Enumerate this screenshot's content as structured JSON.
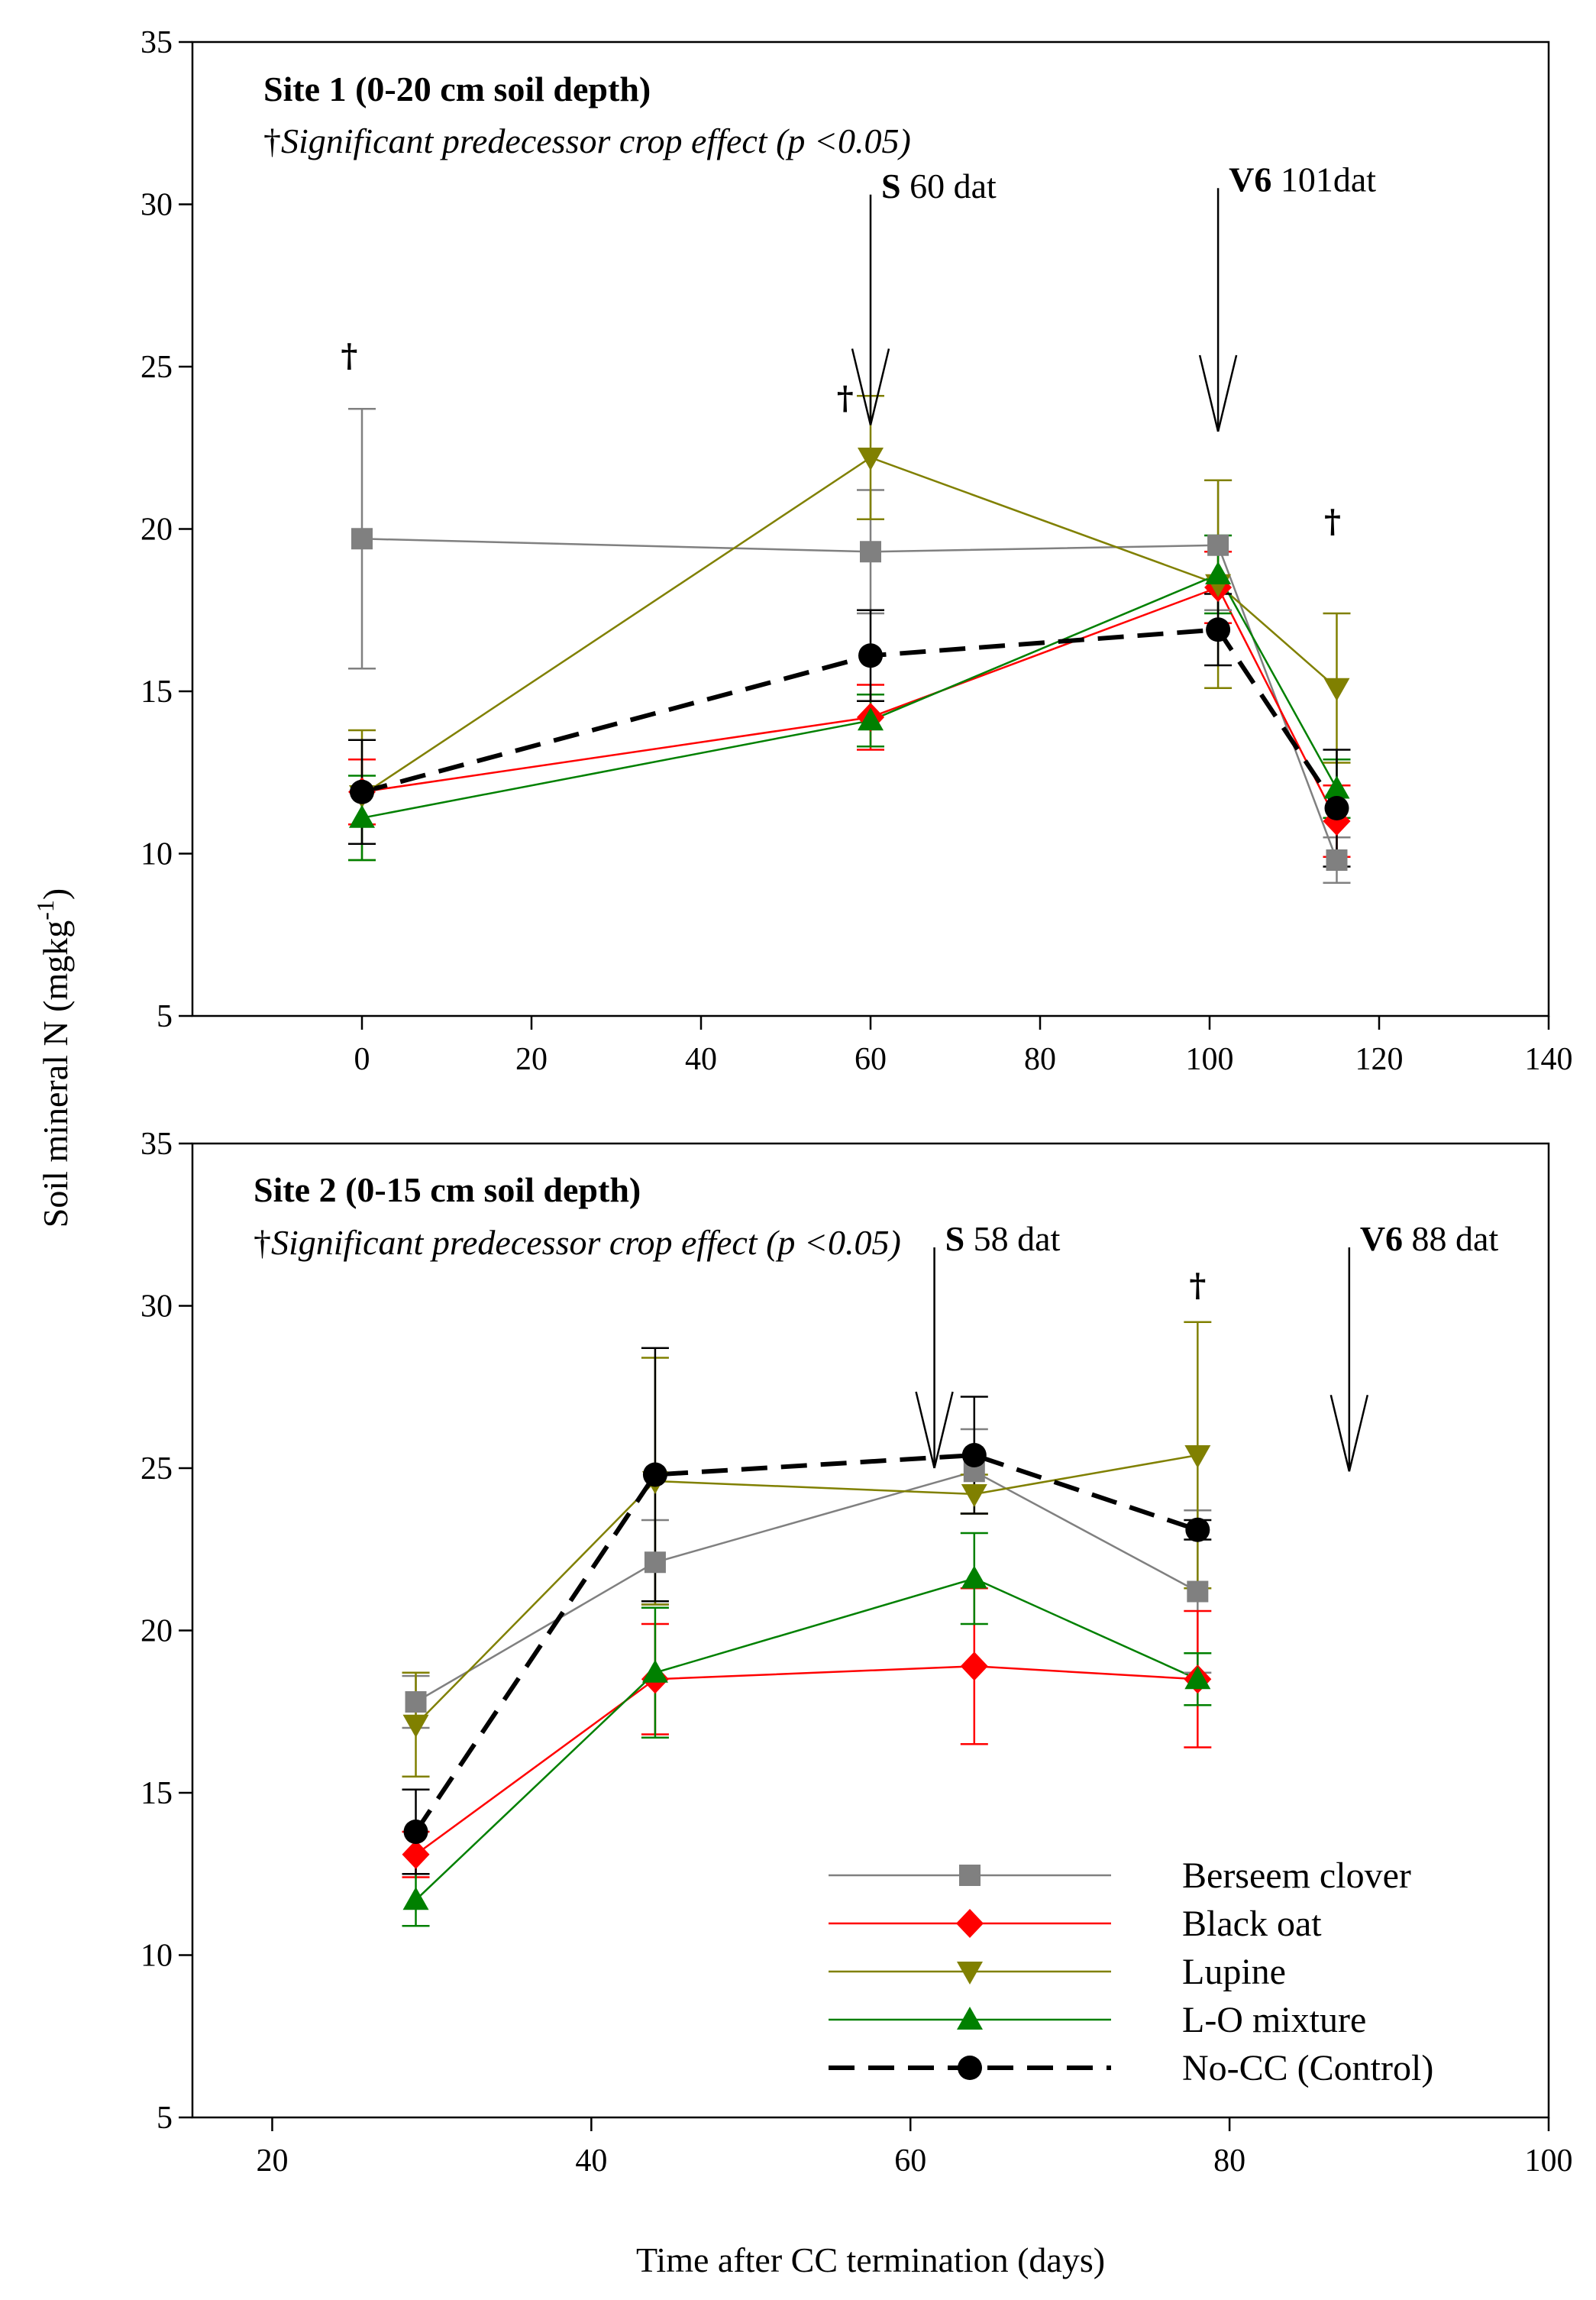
{
  "colors": {
    "berseem": "#808080",
    "blackoat": "#ff0000",
    "lupine": "#808000",
    "lomix": "#008000",
    "control": "#000000"
  },
  "labels": {
    "ylabel_main": "Soil mineral N (mgkg",
    "ylabel_sup": "-1",
    "ylabel_end": ")",
    "xlabel": "Time after CC termination (days)",
    "note_prefix": "†",
    "note_text": "Significant predecessor crop effect (p <0.05)"
  },
  "legend": [
    {
      "key": "berseem",
      "label": "Berseem clover"
    },
    {
      "key": "blackoat",
      "label": "Black oat"
    },
    {
      "key": "lupine",
      "label": "Lupine"
    },
    {
      "key": "lomix",
      "label": "L-O mixture"
    },
    {
      "key": "control",
      "label": "No-CC (Control)"
    }
  ],
  "chart_data": [
    {
      "type": "line",
      "title": "Site 1 (0-20 cm soil depth)",
      "note": "†Significant predecessor crop effect (p <0.05)",
      "xlabel": "Time after CC termination (days)",
      "ylabel": "Soil mineral N (mgkg-1)",
      "xlim": [
        -20,
        140
      ],
      "ylim": [
        5,
        35
      ],
      "xticks": [
        0,
        20,
        40,
        60,
        80,
        100,
        120,
        140
      ],
      "yticks": [
        5,
        10,
        15,
        20,
        25,
        30,
        35
      ],
      "series": [
        {
          "key": "berseem",
          "name": "Berseem clover",
          "x": [
            0,
            60,
            101,
            115
          ],
          "y": [
            19.7,
            19.3,
            19.5,
            9.8
          ],
          "err": [
            4.0,
            1.9,
            2.0,
            0.7
          ]
        },
        {
          "key": "blackoat",
          "name": "Black oat",
          "x": [
            0,
            60,
            101,
            115
          ],
          "y": [
            11.9,
            14.2,
            18.2,
            11.0
          ],
          "err": [
            1.0,
            1.0,
            1.1,
            1.1
          ]
        },
        {
          "key": "lupine",
          "name": "Lupine",
          "x": [
            0,
            60,
            101,
            115
          ],
          "y": [
            11.8,
            22.2,
            18.3,
            15.1
          ],
          "err": [
            2.0,
            1.9,
            3.2,
            2.3
          ]
        },
        {
          "key": "lomix",
          "name": "L-O mixture",
          "x": [
            0,
            60,
            101,
            115
          ],
          "y": [
            11.1,
            14.1,
            18.6,
            12.0
          ],
          "err": [
            1.3,
            0.8,
            1.2,
            0.9
          ]
        },
        {
          "key": "control",
          "name": "No-CC (Control)",
          "x": [
            0,
            60,
            101,
            115
          ],
          "y": [
            11.9,
            16.1,
            16.9,
            11.4
          ],
          "err": [
            1.6,
            1.4,
            1.1,
            1.8
          ]
        }
      ],
      "markers": [
        {
          "label_bold": "S",
          "label_rest": " 60 dat",
          "x": 60,
          "y_top": 30.3,
          "y_bottom": 23.2
        },
        {
          "label_bold": "V6",
          "label_rest": " 101dat",
          "x": 101,
          "y_top": 30.5,
          "y_bottom": 23.0
        }
      ],
      "daggers": [
        {
          "text": "†",
          "x": -1.5,
          "y": 25.0
        },
        {
          "text": "†",
          "x": 57,
          "y": 23.7
        },
        {
          "text": "†",
          "x": 114.5,
          "y": 19.9
        }
      ]
    },
    {
      "type": "line",
      "title": "Site 2 (0-15 cm soil depth)",
      "note": "†Significant predecessor crop effect (p <0.05)",
      "xlabel": "Time after CC termination (days)",
      "ylabel": "Soil mineral N (mgkg-1)",
      "xlim": [
        15,
        100
      ],
      "ylim": [
        5,
        35
      ],
      "xticks": [
        20,
        40,
        60,
        80,
        100
      ],
      "yticks": [
        5,
        10,
        15,
        20,
        25,
        30,
        35
      ],
      "series": [
        {
          "key": "berseem",
          "name": "Berseem clover",
          "x": [
            29,
            44,
            64,
            78
          ],
          "y": [
            17.8,
            22.1,
            24.9,
            21.2
          ],
          "err": [
            0.8,
            1.3,
            1.3,
            2.5
          ]
        },
        {
          "key": "blackoat",
          "name": "Black oat",
          "x": [
            29,
            44,
            64,
            78
          ],
          "y": [
            13.1,
            18.5,
            18.9,
            18.5
          ],
          "err": [
            0.7,
            1.7,
            2.4,
            2.1
          ]
        },
        {
          "key": "lupine",
          "name": "Lupine",
          "x": [
            29,
            44,
            64,
            78
          ],
          "y": [
            17.1,
            24.6,
            24.2,
            25.4
          ],
          "err": [
            1.6,
            3.8,
            0.6,
            4.1
          ]
        },
        {
          "key": "lomix",
          "name": "L-O mixture",
          "x": [
            29,
            44,
            64,
            78
          ],
          "y": [
            11.7,
            18.7,
            21.6,
            18.5
          ],
          "err": [
            0.8,
            2.0,
            1.4,
            0.8
          ]
        },
        {
          "key": "control",
          "name": "No-CC (Control)",
          "x": [
            29,
            44,
            64,
            78
          ],
          "y": [
            13.8,
            24.8,
            25.4,
            23.1
          ],
          "err": [
            1.3,
            3.9,
            1.8,
            0.3
          ]
        }
      ],
      "markers": [
        {
          "label_bold": "S",
          "label_rest": " 58 dat",
          "x": 61.5,
          "y_top": 31.8,
          "y_bottom": 25.0
        },
        {
          "label_bold": "V6",
          "label_rest": " 88 dat",
          "x": 87.5,
          "y_top": 31.8,
          "y_bottom": 24.9
        }
      ],
      "daggers": [
        {
          "text": "†",
          "x": 78,
          "y": 30.3
        }
      ]
    }
  ]
}
